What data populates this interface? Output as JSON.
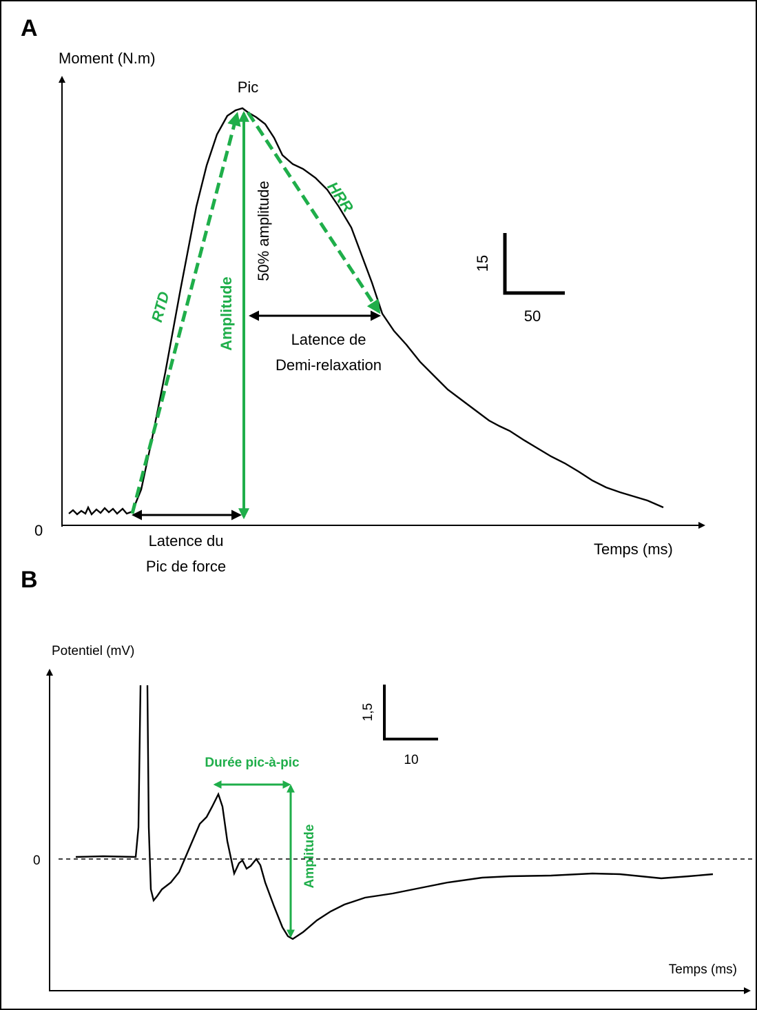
{
  "panel_a": {
    "label": "A",
    "y_axis_label": "Moment (N.m)",
    "zero_label": "0",
    "x_axis_label": "Temps (ms)",
    "peak_label": "Pic",
    "rtd_label": "RTD",
    "amplitude_label": "Amplitude",
    "half_amplitude_label": "50% amplitude",
    "hrr_label": "HRR",
    "half_relaxation_latency": [
      "Latence de",
      "Demi-relaxation"
    ],
    "peak_latency": [
      "Latence du",
      "Pic de force"
    ],
    "scale_bar": {
      "y": "15",
      "x": "50"
    }
  },
  "panel_b": {
    "label": "B",
    "y_axis_label": "Potentiel (mV)",
    "zero_label": "0",
    "x_axis_label": "Temps (ms)",
    "duration_label": "Durée pic-à-pic",
    "amplitude_label": "Amplitude",
    "scale_bar": {
      "y": "1,5",
      "x": "10"
    }
  }
}
